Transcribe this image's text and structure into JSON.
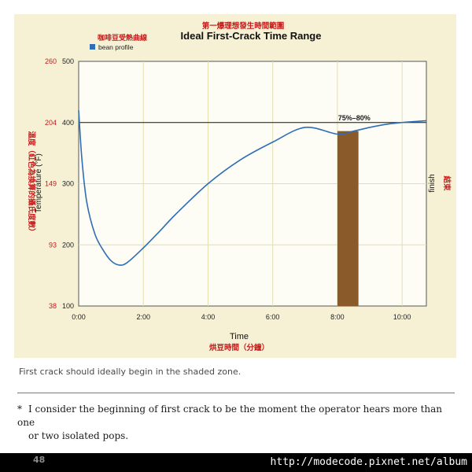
{
  "chart_data": {
    "type": "line",
    "title": "Ideal First-Crack Time Range",
    "title_cn": "第一爆理想發生時間範圍",
    "xlabel": "Time",
    "xlabel_cn": "烘豆時間（分鐘）",
    "ylabel": "Temperature (°F)",
    "ylabel_cn": "溫度（紅色為換算的攝氏度數）",
    "right_label": "finish",
    "right_label_cn": "結束",
    "x_unit": "minutes",
    "xlim": [
      0,
      10.75
    ],
    "ylim": [
      100,
      500
    ],
    "x_ticks": [
      {
        "value": 0,
        "label": "0:00"
      },
      {
        "value": 2,
        "label": "2:00"
      },
      {
        "value": 4,
        "label": "4:00"
      },
      {
        "value": 6,
        "label": "6:00"
      },
      {
        "value": 8,
        "label": "8:00"
      },
      {
        "value": 10,
        "label": "10:00"
      }
    ],
    "y_ticks": [
      {
        "value": 100,
        "label": "100",
        "celsius_label": "38"
      },
      {
        "value": 200,
        "label": "200",
        "celsius_label": "93"
      },
      {
        "value": 300,
        "label": "300",
        "celsius_label": "149"
      },
      {
        "value": 400,
        "label": "400",
        "celsius_label": "204"
      },
      {
        "value": 500,
        "label": "500",
        "celsius_label": "260"
      }
    ],
    "grid": true,
    "legend": {
      "placement": "top-left",
      "label_cn": "咖啡豆受熱曲線"
    },
    "series": [
      {
        "name": "bean profile",
        "color": "#2f6db5",
        "x": [
          0,
          0.1,
          0.25,
          0.5,
          0.75,
          1,
          1.25,
          1.5,
          2,
          2.5,
          3,
          4,
          5,
          6,
          7,
          8,
          8.5,
          9,
          9.5,
          10,
          10.5,
          10.75
        ],
        "y": [
          420,
          340,
          270,
          218,
          192,
          174,
          167,
          171,
          195,
          222,
          250,
          300,
          339,
          368,
          392,
          381,
          386,
          392,
          397,
          400,
          402,
          403
        ]
      }
    ],
    "shaded_zone": {
      "x_start": 8.0,
      "x_end": 8.65,
      "label": "75%–80%",
      "color": "#8b5a2b"
    },
    "reference_line": {
      "y": 400,
      "color": "#1a1a1a"
    }
  },
  "caption": "First crack should ideally begin in the shaded zone.",
  "footnote": {
    "marker": "*",
    "line1": "I consider the beginning of first crack to be the moment the operator hears more than one",
    "line2": "or two isolated pops."
  },
  "page_number": "48",
  "watermark": "http://modecode.pixnet.net/album",
  "colors": {
    "panel_bg": "#f6f1d5",
    "plot_bg": "#fdfdf6",
    "grid": "#e4ddb0",
    "axis": "#333333",
    "red_text": "#c41a1a",
    "series_blue": "#2f6db5",
    "zone_brown": "#8b5a2b"
  }
}
